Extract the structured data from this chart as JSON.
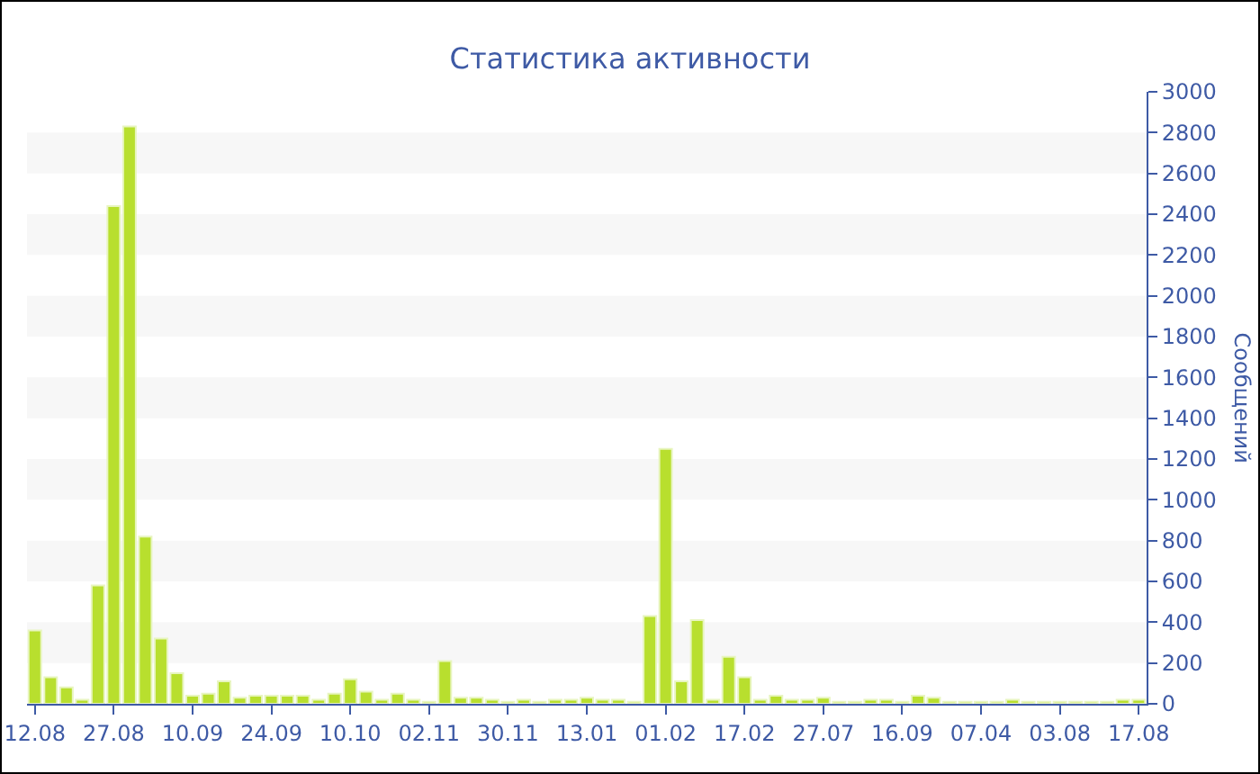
{
  "chart_data": {
    "type": "bar",
    "title": "Статистика активности",
    "ylabel": "Сообщений",
    "categories": [
      "12.08",
      null,
      null,
      null,
      null,
      "27.08",
      null,
      null,
      null,
      null,
      "10.09",
      null,
      null,
      null,
      null,
      "24.09",
      null,
      null,
      null,
      null,
      "10.10",
      null,
      null,
      null,
      null,
      "02.11",
      null,
      null,
      null,
      null,
      "30.11",
      null,
      null,
      null,
      null,
      "13.01",
      null,
      null,
      null,
      null,
      "01.02",
      null,
      null,
      null,
      null,
      "17.02",
      null,
      null,
      null,
      null,
      "27.07",
      null,
      null,
      null,
      null,
      "16.09",
      null,
      null,
      null,
      null,
      "07.04",
      null,
      null,
      null,
      null,
      "03.08",
      null,
      null,
      null,
      null,
      "17.08"
    ],
    "values": [
      360,
      130,
      80,
      20,
      580,
      2440,
      2830,
      820,
      320,
      150,
      40,
      50,
      110,
      30,
      40,
      40,
      40,
      40,
      20,
      50,
      120,
      60,
      20,
      50,
      20,
      10,
      210,
      30,
      30,
      20,
      10,
      20,
      10,
      20,
      20,
      30,
      20,
      20,
      10,
      430,
      1250,
      110,
      410,
      20,
      230,
      130,
      20,
      40,
      20,
      20,
      30,
      10,
      10,
      20,
      20,
      10,
      40,
      30,
      10,
      10,
      10,
      10,
      20,
      10,
      10,
      10,
      10,
      10,
      10,
      20,
      20
    ],
    "color": "#b8df2e",
    "ylim": [
      0,
      3000
    ],
    "yticks": [
      0,
      200,
      400,
      600,
      800,
      1000,
      1200,
      1400,
      1600,
      1800,
      2000,
      2200,
      2400,
      2600,
      2800,
      3000
    ],
    "bands": [
      {
        "axis": "y",
        "from": 200,
        "to": 400,
        "color": "#f7f7f7"
      },
      {
        "axis": "y",
        "from": 600,
        "to": 800,
        "color": "#f7f7f7"
      },
      {
        "axis": "y",
        "from": 1000,
        "to": 1200,
        "color": "#f7f7f7"
      },
      {
        "axis": "y",
        "from": 1400,
        "to": 1600,
        "color": "#f7f7f7"
      },
      {
        "axis": "y",
        "from": 1800,
        "to": 2000,
        "color": "#f7f7f7"
      },
      {
        "axis": "y",
        "from": 2200,
        "to": 2400,
        "color": "#f7f7f7"
      },
      {
        "axis": "y",
        "from": 2600,
        "to": 2800,
        "color": "#f7f7f7"
      }
    ]
  }
}
